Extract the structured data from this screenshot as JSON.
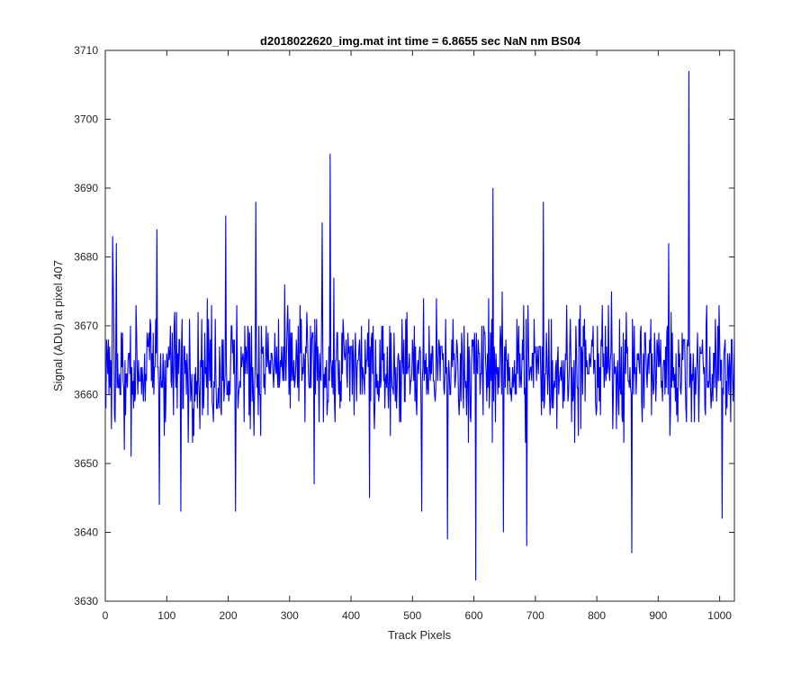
{
  "chart_data": {
    "type": "line",
    "title": "d2018022620_img.mat int time = 6.8655 sec  NaN nm BS04",
    "xlabel": "Track Pixels",
    "ylabel": "Signal (ADU) at pixel 407",
    "xlim": [
      0,
      1024
    ],
    "ylim": [
      3630,
      3710
    ],
    "xticks": [
      0,
      100,
      200,
      300,
      400,
      500,
      600,
      700,
      800,
      900,
      1000
    ],
    "yticks": [
      3630,
      3640,
      3650,
      3660,
      3670,
      3680,
      3690,
      3700,
      3710
    ],
    "grid": false,
    "legend": "none",
    "series": [
      {
        "color": "#0000ff",
        "x_start": 1,
        "x_step": 1,
        "baseline": 3664,
        "notable_points": [
          {
            "x": 5,
            "y": 3668
          },
          {
            "x": 12,
            "y": 3683
          },
          {
            "x": 18,
            "y": 3682
          },
          {
            "x": 31,
            "y": 3652
          },
          {
            "x": 84,
            "y": 3684
          },
          {
            "x": 88,
            "y": 3644
          },
          {
            "x": 123,
            "y": 3643
          },
          {
            "x": 196,
            "y": 3686
          },
          {
            "x": 212,
            "y": 3643
          },
          {
            "x": 245,
            "y": 3688
          },
          {
            "x": 340,
            "y": 3647
          },
          {
            "x": 353,
            "y": 3685
          },
          {
            "x": 366,
            "y": 3695
          },
          {
            "x": 430,
            "y": 3645
          },
          {
            "x": 515,
            "y": 3643
          },
          {
            "x": 557,
            "y": 3639
          },
          {
            "x": 603,
            "y": 3633
          },
          {
            "x": 631,
            "y": 3690
          },
          {
            "x": 648,
            "y": 3640
          },
          {
            "x": 686,
            "y": 3638
          },
          {
            "x": 713,
            "y": 3688
          },
          {
            "x": 857,
            "y": 3637
          },
          {
            "x": 917,
            "y": 3682
          },
          {
            "x": 950,
            "y": 3707
          },
          {
            "x": 1004,
            "y": 3642
          }
        ]
      }
    ]
  }
}
